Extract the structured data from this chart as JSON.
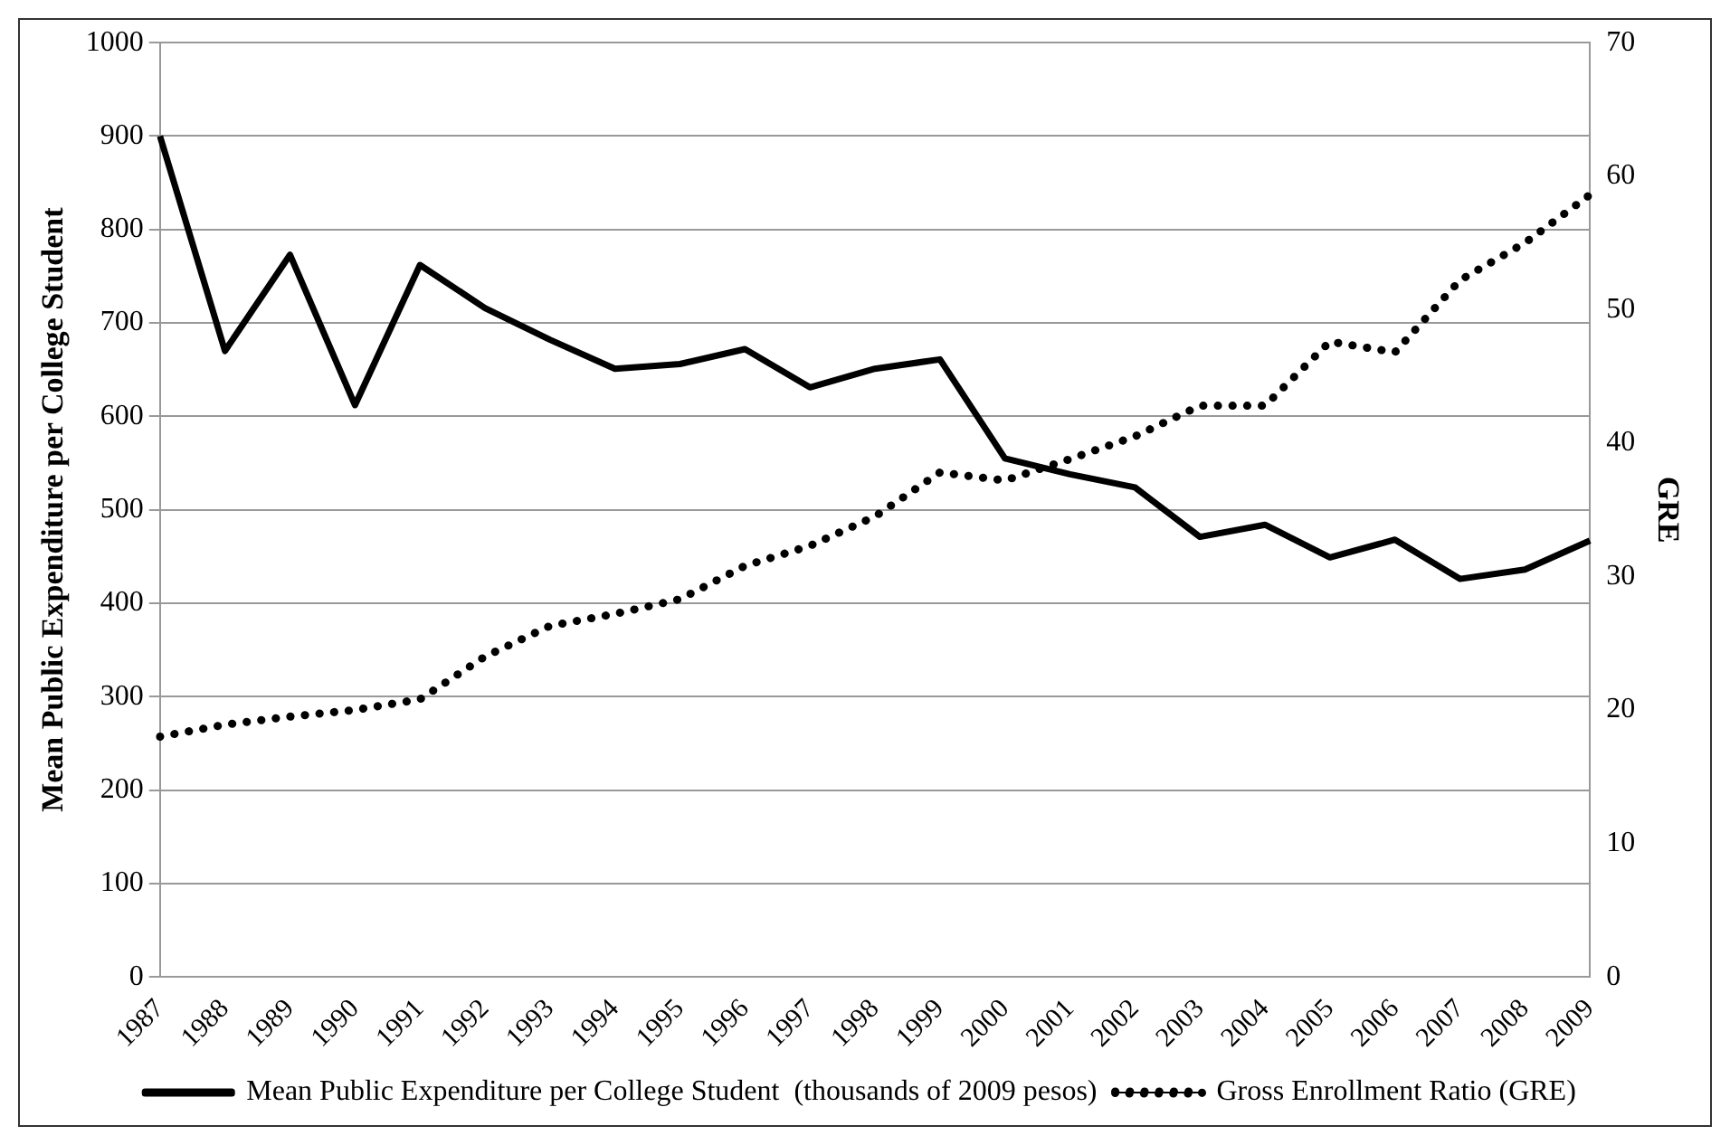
{
  "chart_data": {
    "type": "line",
    "ylabel": "Mean Public Expenditure per College Student",
    "y2label": "GRE",
    "categories": [
      "1987",
      "1988",
      "1989",
      "1990",
      "1991",
      "1992",
      "1993",
      "1994",
      "1995",
      "1996",
      "1997",
      "1998",
      "1999",
      "2000",
      "2001",
      "2002",
      "2003",
      "2004",
      "2005",
      "2006",
      "2007",
      "2008",
      "2009"
    ],
    "series": [
      {
        "name": "Mean Public Expenditure per College Student  (thousands of 2009 pesos)",
        "color": "#000000",
        "line_style": "solid",
        "values": [
          900,
          670,
          773,
          612,
          762,
          716,
          682,
          651,
          656,
          672,
          631,
          651,
          661,
          555,
          538,
          524,
          471,
          484,
          449,
          468,
          426,
          436,
          467
        ]
      },
      {
        "name": "Gross Enrollment Ratio (GRE)",
        "color": "#000000",
        "line_style": "dotted",
        "axis": "y2",
        "values": [
          18,
          18.9,
          19.5,
          20,
          20.8,
          24,
          26.3,
          27.2,
          28.3,
          30.8,
          32.3,
          34.5,
          37.8,
          37.2,
          38.8,
          40.5,
          42.8,
          42.8,
          47.6,
          46.8,
          52.2,
          55,
          58.6
        ]
      }
    ],
    "ylim": [
      0,
      1000
    ],
    "yticks": [
      0,
      100,
      200,
      300,
      400,
      500,
      600,
      700,
      800,
      900,
      1000
    ],
    "y2lim": [
      0,
      70
    ],
    "y2ticks": [
      0,
      10,
      20,
      30,
      40,
      50,
      60,
      70
    ],
    "grid": "y",
    "legend": "bottom",
    "marker": "none"
  }
}
